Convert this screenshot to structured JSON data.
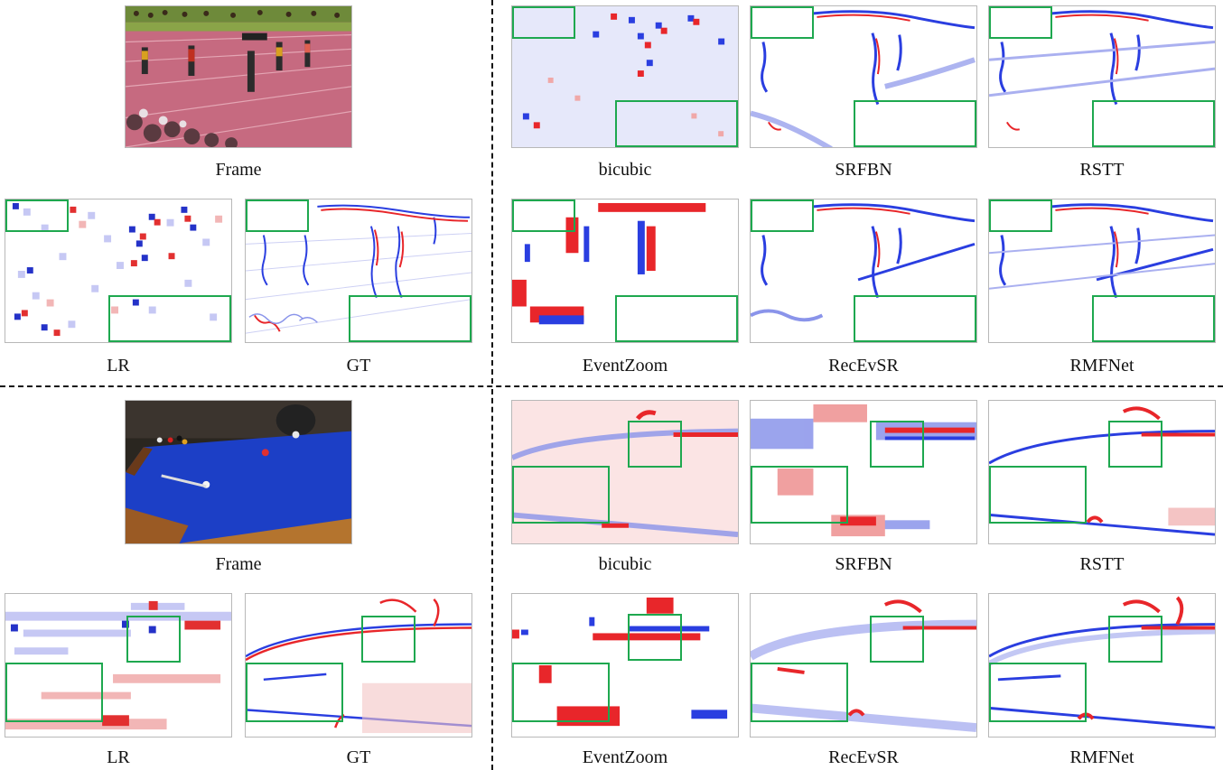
{
  "figure": {
    "top_group": {
      "frame_label": "Frame",
      "lr_label": "LR",
      "gt_label": "GT",
      "methods": [
        "bicubic",
        "SRFBN",
        "RSTT",
        "EventZoom",
        "RecEvSR",
        "RMFNet"
      ]
    },
    "bottom_group": {
      "frame_label": "Frame",
      "lr_label": "LR",
      "gt_label": "GT",
      "methods": [
        "bicubic",
        "SRFBN",
        "RSTT",
        "EventZoom",
        "RecEvSR",
        "RMFNet"
      ]
    },
    "colors": {
      "positive_events": "#e8262a",
      "negative_events": "#2a3ee0",
      "zoom_box": "#1ea84f",
      "panel_border": "#b8b8b8"
    }
  }
}
